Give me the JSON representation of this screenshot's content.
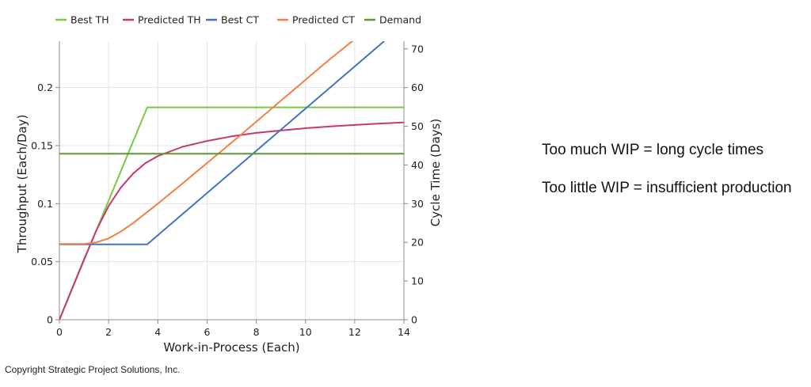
{
  "chart_data": {
    "type": "line",
    "title": "",
    "legend_position": "top",
    "grid": true,
    "xlabel": "Work-in-Process (Each)",
    "ylabel": "Throughput (Each/Day)",
    "y2label": "Cycle Time (Days)",
    "xlim": [
      0,
      14
    ],
    "ylim": [
      0,
      0.24
    ],
    "y2lim": [
      0,
      72
    ],
    "xticks": [
      0,
      2,
      4,
      6,
      8,
      10,
      12,
      14
    ],
    "yticks": [
      0,
      0.05,
      0.1,
      0.15,
      0.2
    ],
    "ytick_labels": [
      "0",
      "0.05",
      "0.1",
      "0.15",
      "0.2"
    ],
    "y2ticks": [
      0,
      10,
      20,
      30,
      40,
      50,
      60,
      70
    ],
    "series": [
      {
        "name": "Best TH",
        "axis": "left",
        "color": "#7ac943",
        "x": [
          0,
          3.57,
          14
        ],
        "y": [
          0,
          0.183,
          0.183
        ]
      },
      {
        "name": "Predicted TH",
        "axis": "left",
        "color": "#c7386e",
        "x": [
          0,
          0.5,
          1,
          1.5,
          2,
          2.5,
          3,
          3.5,
          4,
          5,
          6,
          7,
          8,
          9,
          10,
          11,
          12,
          13,
          14
        ],
        "y": [
          0,
          0.026,
          0.052,
          0.077,
          0.098,
          0.114,
          0.126,
          0.135,
          0.141,
          0.149,
          0.154,
          0.158,
          0.161,
          0.163,
          0.165,
          0.1665,
          0.1678,
          0.169,
          0.17
        ]
      },
      {
        "name": "Best CT",
        "axis": "right",
        "color": "#4472c4",
        "x": [
          0,
          3.57,
          13.2
        ],
        "y": [
          19.5,
          19.5,
          72
        ]
      },
      {
        "name": "Predicted CT",
        "axis": "right",
        "color": "#f57e42",
        "x": [
          0,
          1,
          1.5,
          2,
          2.5,
          3,
          4,
          5,
          6,
          7,
          8,
          9,
          10,
          11,
          12
        ],
        "y": [
          19.6,
          19.6,
          20,
          21,
          22.8,
          25,
          30,
          35.2,
          40.5,
          45.8,
          51.2,
          56.6,
          62,
          67.4,
          72.5
        ]
      },
      {
        "name": "Demand",
        "axis": "left",
        "color": "#5a9a2e",
        "x": [
          0,
          14
        ],
        "y": [
          0.143,
          0.143
        ]
      }
    ]
  },
  "notes": {
    "line1": "Too much WIP = long cycle times",
    "line2": "Too little WIP = insufficient production"
  },
  "copyright": "Copyright Strategic Project Solutions, Inc."
}
